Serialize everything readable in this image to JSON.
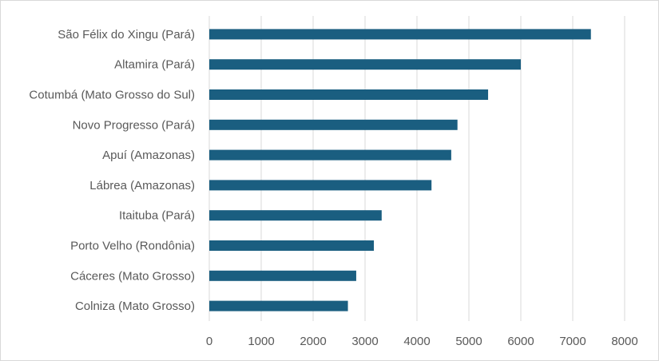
{
  "chart_data": {
    "type": "bar",
    "orientation": "horizontal",
    "title": "",
    "xlabel": "",
    "ylabel": "",
    "categories": [
      "São Félix do Xingu (Pará)",
      "Altamira (Pará)",
      "Cotumbá (Mato Grosso do Sul)",
      "Novo Progresso (Pará)",
      "Apuí (Amazonas)",
      "Lábrea (Amazonas)",
      "Itaituba (Pará)",
      "Porto Velho (Rondônia)",
      "Cáceres (Mato Grosso)",
      "Colniza (Mato Grosso)"
    ],
    "values": [
      7350,
      6000,
      5370,
      4780,
      4660,
      4280,
      3320,
      3170,
      2830,
      2670
    ],
    "xlim": [
      0,
      8000
    ],
    "xticks": [
      0,
      1000,
      2000,
      3000,
      4000,
      5000,
      6000,
      7000,
      8000
    ],
    "grid": "vertical",
    "legend": "none",
    "bar_color": "#1a5e80",
    "grid_color": "#d9d9d9"
  }
}
